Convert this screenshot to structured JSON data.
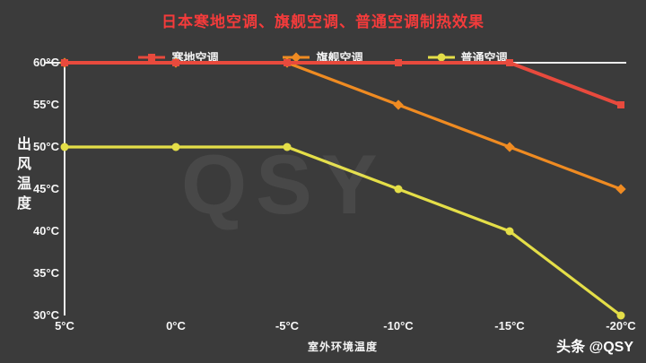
{
  "chart_data": {
    "type": "line",
    "title": "日本寒地空调、旗舰空调、普通空调制热效果",
    "title_color": "#f43b3b",
    "xlabel": "室外环境温度",
    "ylabel": "出风温度",
    "categories": [
      "5°C",
      "0°C",
      "-5°C",
      "-10°C",
      "-15°C",
      "-20°C"
    ],
    "y_ticks": [
      {
        "label": "60°C",
        "value": 60
      },
      {
        "label": "55°C",
        "value": 55
      },
      {
        "label": "50°C",
        "value": 50
      },
      {
        "label": "45°C",
        "value": 45
      },
      {
        "label": "40°C",
        "value": 40
      },
      {
        "label": "35°C",
        "value": 35
      },
      {
        "label": "30°C",
        "value": 30
      }
    ],
    "ylim": [
      30,
      60
    ],
    "grid": false,
    "legend_position": "top",
    "series": [
      {
        "name": "寒地空调",
        "color": "#e84a3d",
        "marker": "square",
        "values": [
          60,
          60,
          60,
          60,
          60,
          55
        ]
      },
      {
        "name": "旗舰空调",
        "color": "#ef8b22",
        "marker": "diamond",
        "values": [
          60,
          60,
          60,
          55,
          50,
          45
        ]
      },
      {
        "name": "普通空调",
        "color": "#e4de48",
        "marker": "circle",
        "values": [
          50,
          50,
          50,
          45,
          40,
          30
        ]
      }
    ]
  },
  "watermark": "QSY",
  "footer": {
    "brand": "头条 @QSY"
  },
  "colors": {
    "background": "#3b3b3b",
    "axis": "#ececec",
    "text": "#f5f5f5"
  }
}
